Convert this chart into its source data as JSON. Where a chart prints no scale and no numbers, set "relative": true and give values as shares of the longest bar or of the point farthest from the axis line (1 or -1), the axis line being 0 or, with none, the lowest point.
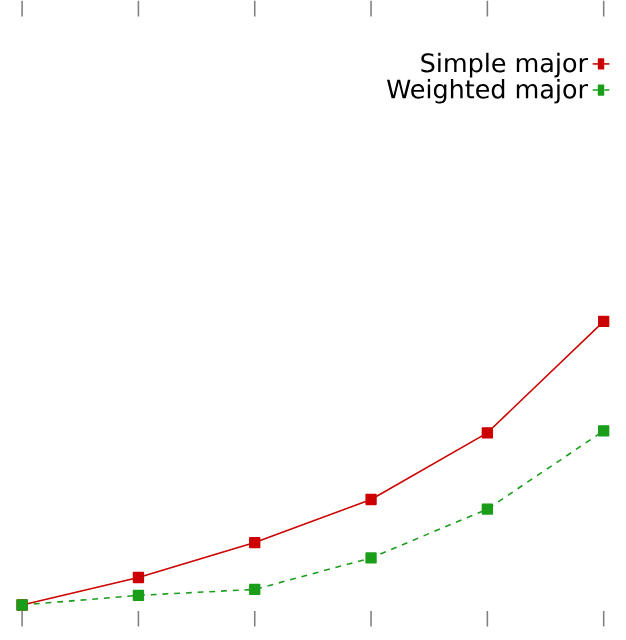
{
  "chart_data": {
    "type": "line",
    "relative": true,
    "categories": [
      null,
      null,
      null,
      null,
      null,
      null
    ],
    "series": [
      {
        "name": "Simple major",
        "color": "#cc0000",
        "values": [
          0,
          0.097,
          0.22,
          0.372,
          0.607,
          1
        ],
        "line_style": "solid"
      },
      {
        "name": "Weighted major",
        "color": "#1a9e1a",
        "values": [
          0,
          0.034,
          0.055,
          0.166,
          0.338,
          0.614
        ],
        "line_style": "dashed"
      }
    ],
    "marker": "square",
    "legend": "top right",
    "grid": false
  }
}
